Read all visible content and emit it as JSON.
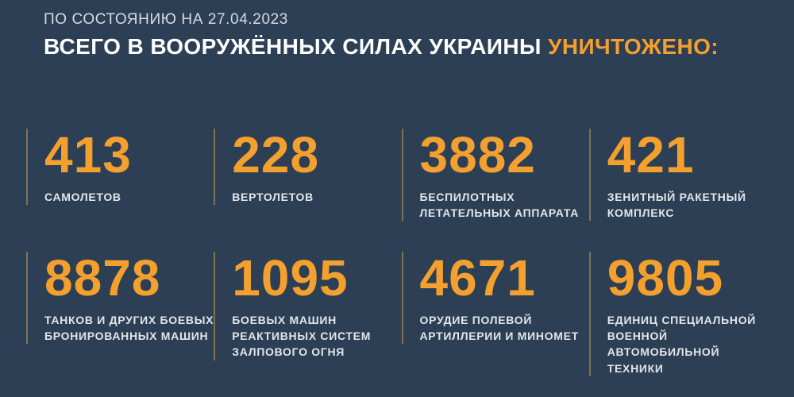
{
  "colors": {
    "background": "#2d3f55",
    "accent_orange": "#f3a02f",
    "title_white": "#ffffff",
    "subtitle_gray": "#d6dbe2",
    "label_gray": "#e2e6eb",
    "divider": "#837252"
  },
  "header": {
    "date_line": "ПО СОСТОЯНИЮ НА 27.04.2023",
    "title_white": "ВСЕГО В ВООРУЖЁННЫХ СИЛАХ УКРАИНЫ ",
    "title_accent": "УНИЧТОЖЕНО:"
  },
  "stats": [
    {
      "value": "413",
      "label": "САМОЛЕТОВ"
    },
    {
      "value": "228",
      "label": "ВЕРТОЛЕТОВ"
    },
    {
      "value": "3882",
      "label": "БЕСПИЛОТНЫХ\nЛЕТАТЕЛЬНЫХ АППАРАТА"
    },
    {
      "value": "421",
      "label": "ЗЕНИТНЫЙ РАКЕТНЫЙ\nКОМПЛЕКС"
    },
    {
      "value": "8878",
      "label": "ТАНКОВ И ДРУГИХ БОЕВЫХ\nБРОНИРОВАННЫХ МАШИН"
    },
    {
      "value": "1095",
      "label": "БОЕВЫХ МАШИН\nРЕАКТИВНЫХ СИСТЕМ\nЗАЛПОВОГО ОГНЯ"
    },
    {
      "value": "4671",
      "label": "ОРУДИЕ ПОЛЕВОЙ\nАРТИЛЛЕРИИ И МИНОМЕТ"
    },
    {
      "value": "9805",
      "label": "ЕДИНИЦ СПЕЦИАЛЬНОЙ\nВОЕННОЙ АВТОМОБИЛЬНОЙ\nТЕХНИКИ"
    }
  ],
  "chart_data": {
    "type": "table",
    "title": "ВСЕГО В ВООРУЖЁННЫХ СИЛАХ УКРАИНЫ УНИЧТОЖЕНО:",
    "subtitle": "ПО СОСТОЯНИЮ НА 27.04.2023",
    "categories": [
      "САМОЛЕТОВ",
      "ВЕРТОЛЕТОВ",
      "БЕСПИЛОТНЫХ ЛЕТАТЕЛЬНЫХ АППАРАТА",
      "ЗЕНИТНЫЙ РАКЕТНЫЙ КОМПЛЕКС",
      "ТАНКОВ И ДРУГИХ БОЕВЫХ БРОНИРОВАННЫХ МАШИН",
      "БОЕВЫХ МАШИН РЕАКТИВНЫХ СИСТЕМ ЗАЛПОВОГО ОГНЯ",
      "ОРУДИЕ ПОЛЕВОЙ АРТИЛЛЕРИИ И МИНОМЕТ",
      "ЕДИНИЦ СПЕЦИАЛЬНОЙ ВОЕННОЙ АВТОМОБИЛЬНОЙ ТЕХНИКИ"
    ],
    "values": [
      413,
      228,
      3882,
      421,
      8878,
      1095,
      4671,
      9805
    ],
    "layout": "2 rows x 4 columns of stat counters, values in orange, labels in white, dark navy background"
  }
}
